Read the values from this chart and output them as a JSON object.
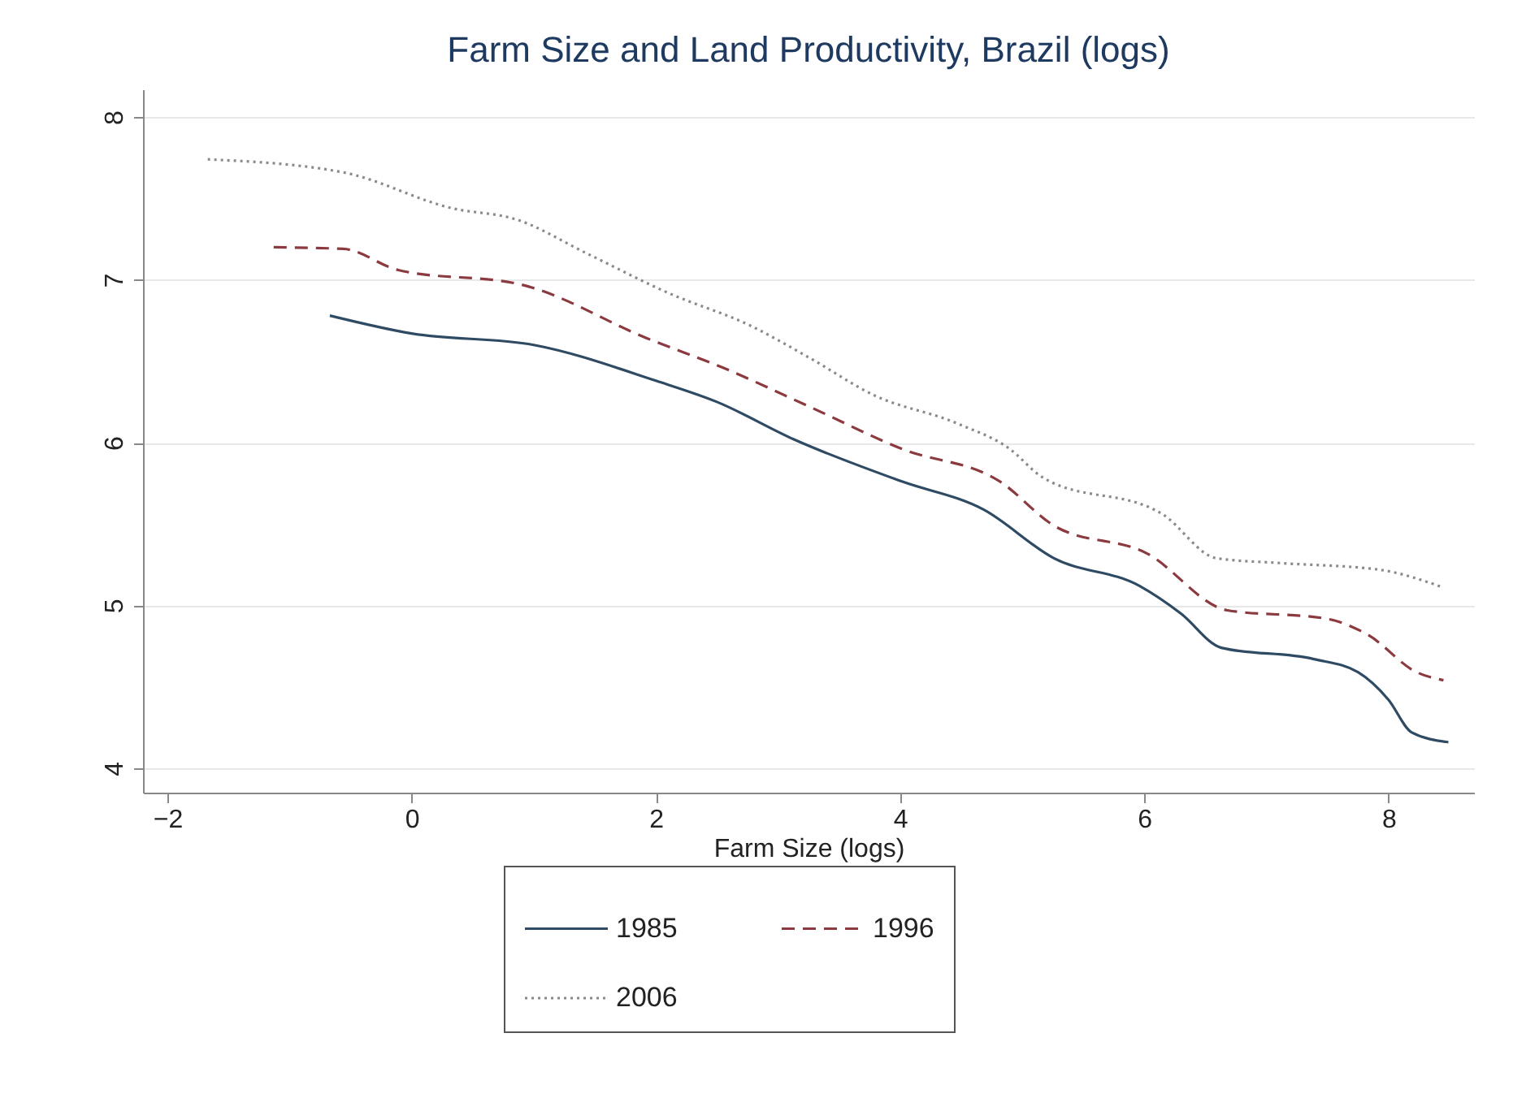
{
  "chart_data": {
    "type": "line",
    "title": "Farm Size and Land Productivity, Brazil (logs)",
    "xlabel": "Farm Size (logs)",
    "xlim": [
      -2.2,
      8.7
    ],
    "xticks": [
      -2,
      0,
      2,
      4,
      6,
      8
    ],
    "ylim": [
      3.85,
      8.17
    ],
    "yticks": [
      4,
      5,
      6,
      7,
      8
    ],
    "grid": "y",
    "legend": "bottom",
    "series": [
      {
        "name": "1985",
        "color": "#2f4a63",
        "line_style": "solid",
        "x": [
          -0.67,
          0,
          1.0,
          2.0,
          2.5,
          3.13,
          4.02,
          4.68,
          5.26,
          5.96,
          6.3,
          6.63,
          7.39,
          7.75,
          8.0,
          8.19,
          8.49
        ],
        "values": [
          6.78,
          6.67,
          6.6,
          6.38,
          6.25,
          6.02,
          5.76,
          5.59,
          5.29,
          5.12,
          4.95,
          4.74,
          4.67,
          4.59,
          4.42,
          4.22,
          4.16
        ]
      },
      {
        "name": "1996",
        "color": "#8b3a3f",
        "line_style": "dashed",
        "x": [
          -1.13,
          -0.56,
          -0.11,
          0.9,
          1.93,
          2.55,
          3.26,
          4.02,
          4.82,
          5.26,
          6.02,
          6.68,
          7.48,
          7.83,
          8.23,
          8.45
        ],
        "values": [
          7.2,
          7.19,
          7.06,
          6.97,
          6.64,
          6.46,
          6.22,
          5.96,
          5.76,
          5.49,
          5.32,
          4.97,
          4.92,
          4.82,
          4.59,
          4.54
        ]
      },
      {
        "name": "2006",
        "color": "#8a8a8a",
        "line_style": "dotted",
        "x": [
          -1.67,
          -0.56,
          0.33,
          0.86,
          1.44,
          2.1,
          2.77,
          3.26,
          3.79,
          4.46,
          4.9,
          5.16,
          6.15,
          6.59,
          7.12,
          7.92,
          8.45
        ],
        "values": [
          7.74,
          7.66,
          7.44,
          7.37,
          7.16,
          6.92,
          6.72,
          6.52,
          6.29,
          6.12,
          5.96,
          5.79,
          5.56,
          5.29,
          5.26,
          5.22,
          5.11
        ]
      }
    ]
  }
}
